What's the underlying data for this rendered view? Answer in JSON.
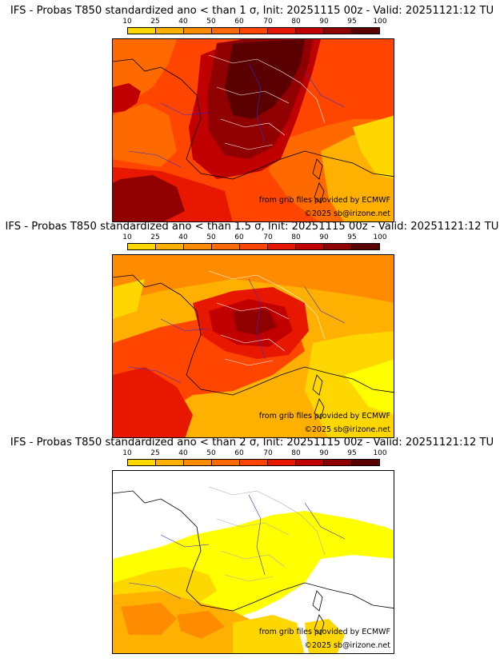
{
  "colors": {
    "scale": [
      "#ffff00",
      "#ffd700",
      "#ffb000",
      "#ff8c00",
      "#ff6a00",
      "#ff4500",
      "#e81800",
      "#c00000",
      "#900000",
      "#5a0000"
    ],
    "no_data": "#ffffff",
    "borders": "#ffffff",
    "coastline": "#000000",
    "rivers": "#3030d0"
  },
  "legend": {
    "ticks": [
      "10",
      "25",
      "40",
      "50",
      "60",
      "70",
      "80",
      "90",
      "95",
      "100"
    ]
  },
  "panels": [
    {
      "title": "IFS - Probas T850  standardized ano < than 1 σ, Init: 20251115 00z - Valid: 20251121:12 TU",
      "threshold_sigma": 1,
      "credit_source": "from grib files provided by ECMWF",
      "credit_copy": "©2025 sb@irizone.net"
    },
    {
      "title": "IFS - Probas T850  standardized ano < than 1.5 σ, Init: 20251115 00z - Valid: 20251121:12 TU",
      "threshold_sigma": 1.5,
      "credit_source": "from grib files provided by ECMWF",
      "credit_copy": "©2025 sb@irizone.net"
    },
    {
      "title": "IFS - Probas T850  standardized ano < than 2 σ, Init: 20251115 00z - Valid: 20251121:12 TU",
      "threshold_sigma": 2,
      "credit_source": "from grib files provided by ECMWF",
      "credit_copy": "©2025 sb@irizone.net"
    }
  ]
}
